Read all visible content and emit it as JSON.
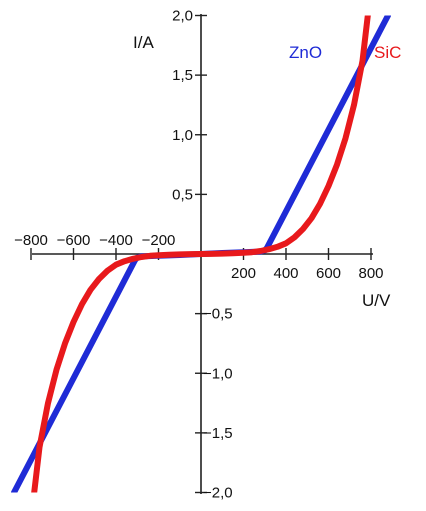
{
  "chart_data": {
    "type": "line",
    "xlabel": "U/V",
    "ylabel": "I/A",
    "xlim": [
      -850,
      850
    ],
    "ylim": [
      -2.0,
      2.0
    ],
    "x_ticks": [
      -800,
      -600,
      -400,
      -200,
      200,
      400,
      600,
      800
    ],
    "x_tick_labels": [
      "−800",
      "−600",
      "−400",
      "−200",
      "200",
      "400",
      "600",
      "800"
    ],
    "y_ticks": [
      -2.0,
      -1.5,
      -1.0,
      -0.5,
      0.5,
      1.0,
      1.5,
      2.0
    ],
    "y_tick_labels": [
      "−2,0",
      "−1,5",
      "−1,0",
      "−0,5",
      "0,5",
      "1,0",
      "1,5",
      "2,0"
    ],
    "grid": false,
    "series": [
      {
        "name": "ZnO",
        "color": "#1f2bd6",
        "x": [
          -880,
          -310,
          -300,
          -280,
          -200,
          -100,
          0,
          100,
          200,
          280,
          300,
          310,
          880
        ],
        "y": [
          -2.0,
          -0.05,
          -0.03,
          -0.02,
          -0.015,
          -0.008,
          0,
          0.008,
          0.015,
          0.02,
          0.03,
          0.05,
          2.0
        ]
      },
      {
        "name": "SiC",
        "color": "#e8191c",
        "x": [
          -785,
          -760,
          -720,
          -680,
          -640,
          -600,
          -560,
          -520,
          -480,
          -440,
          -400,
          -360,
          -320,
          -280,
          -240,
          -200,
          -150,
          -100,
          -50,
          0,
          50,
          100,
          150,
          200,
          240,
          280,
          320,
          360,
          400,
          440,
          480,
          520,
          560,
          600,
          640,
          680,
          720,
          760,
          785
        ],
        "y": [
          -2.0,
          -1.62,
          -1.25,
          -0.97,
          -0.75,
          -0.57,
          -0.42,
          -0.3,
          -0.21,
          -0.14,
          -0.09,
          -0.06,
          -0.04,
          -0.025,
          -0.015,
          -0.01,
          -0.006,
          -0.003,
          -0.001,
          0,
          0.001,
          0.003,
          0.006,
          0.01,
          0.015,
          0.025,
          0.04,
          0.06,
          0.09,
          0.14,
          0.21,
          0.3,
          0.42,
          0.57,
          0.75,
          0.97,
          1.25,
          1.62,
          2.0
        ]
      }
    ]
  }
}
